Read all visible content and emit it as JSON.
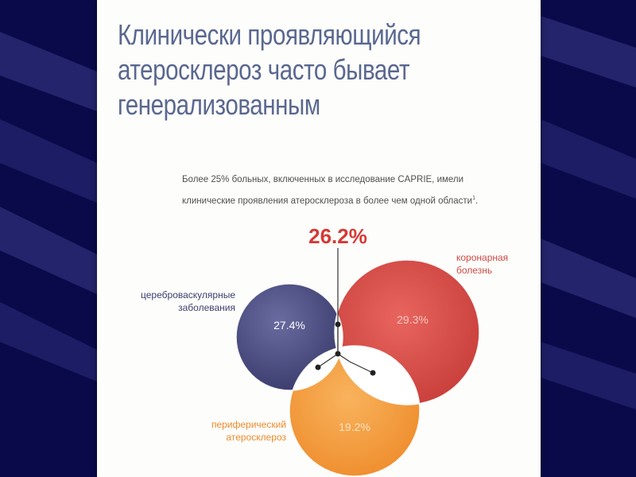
{
  "title_lines": [
    "Клинически проявляющийся",
    "атеросклероз часто бывает",
    "генерализованным"
  ],
  "subtitle_lines": [
    "Более 25% больных, включенных в исследование CAPRIE, имели",
    "клинические проявления атеросклероза в более чем одной области"
  ],
  "subtitle_sup": "1",
  "overlap_value": "26.2%",
  "sets": [
    {
      "label_lines": [
        "цереброваскулярные",
        "заболевания"
      ],
      "value": "27.4%",
      "color": "#44457a"
    },
    {
      "label_lines": [
        "коронарная",
        "болезнь"
      ],
      "value": "29.3%",
      "color": "#d84a45"
    },
    {
      "label_lines": [
        "периферический",
        "атеросклероз"
      ],
      "value": "19.2%",
      "color": "#f29a3c"
    }
  ],
  "colors": {
    "title": "#5a6890",
    "overlap_value": "#d43a35",
    "background": "#0a0a4a",
    "slide": "#fdfdfb"
  }
}
